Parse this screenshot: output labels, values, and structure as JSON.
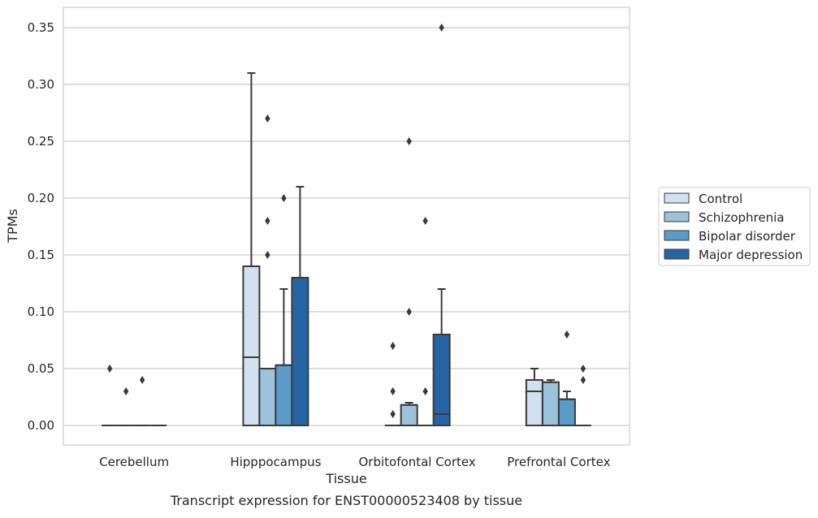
{
  "caption": "Transcript expression for ENST00000523408 by tissue",
  "chart_data": {
    "type": "box",
    "xlabel": "Tissue",
    "ylabel": "TPMs",
    "ylim": [
      -0.017,
      0.367
    ],
    "yticks": [
      "0.00",
      "0.05",
      "0.10",
      "0.15",
      "0.20",
      "0.25",
      "0.30",
      "0.35"
    ],
    "grid": true,
    "legend_position": "right",
    "categories": [
      "Cerebellum",
      "Hipppocampus",
      "Orbitofontal Cortex",
      "Prefrontal Cortex"
    ],
    "series": [
      {
        "name": "Control",
        "color": "#d1e1f0",
        "boxes": [
          {
            "q1": 0.0,
            "median": 0.0,
            "q3": 0.0,
            "whislo": 0.0,
            "whishi": 0.0,
            "fliers": [
              0.05
            ]
          },
          {
            "q1": 0.0,
            "median": 0.06,
            "q3": 0.14,
            "whislo": 0.0,
            "whishi": 0.31,
            "fliers": []
          },
          {
            "q1": 0.0,
            "median": 0.0,
            "q3": 0.0,
            "whislo": 0.0,
            "whishi": 0.0,
            "fliers": [
              0.01,
              0.03,
              0.07
            ]
          },
          {
            "q1": 0.0,
            "median": 0.03,
            "q3": 0.04,
            "whislo": 0.0,
            "whishi": 0.05,
            "fliers": []
          }
        ]
      },
      {
        "name": "Schizophrenia",
        "color": "#9cc2dc",
        "boxes": [
          {
            "q1": 0.0,
            "median": 0.0,
            "q3": 0.0,
            "whislo": 0.0,
            "whishi": 0.0,
            "fliers": [
              0.03
            ]
          },
          {
            "q1": 0.0,
            "median": 0.05,
            "q3": 0.05,
            "whislo": 0.0,
            "whishi": 0.05,
            "fliers": [
              0.15,
              0.18,
              0.27
            ]
          },
          {
            "q1": 0.0,
            "median": 0.018,
            "q3": 0.018,
            "whislo": 0.0,
            "whishi": 0.02,
            "fliers": [
              0.1,
              0.25
            ]
          },
          {
            "q1": 0.0,
            "median": 0.038,
            "q3": 0.038,
            "whislo": 0.0,
            "whishi": 0.04,
            "fliers": []
          }
        ]
      },
      {
        "name": "Bipolar disorder",
        "color": "#5a9bc8",
        "boxes": [
          {
            "q1": 0.0,
            "median": 0.0,
            "q3": 0.0,
            "whislo": 0.0,
            "whishi": 0.0,
            "fliers": [
              0.04
            ]
          },
          {
            "q1": 0.0,
            "median": 0.053,
            "q3": 0.053,
            "whislo": 0.0,
            "whishi": 0.12,
            "fliers": [
              0.2
            ]
          },
          {
            "q1": 0.0,
            "median": 0.0,
            "q3": 0.0,
            "whislo": 0.0,
            "whishi": 0.0,
            "fliers": [
              0.03,
              0.18
            ]
          },
          {
            "q1": 0.0,
            "median": 0.023,
            "q3": 0.023,
            "whislo": 0.0,
            "whishi": 0.03,
            "fliers": [
              0.08
            ]
          }
        ]
      },
      {
        "name": "Major depression",
        "color": "#2565a5",
        "boxes": [
          {
            "q1": 0.0,
            "median": 0.0,
            "q3": 0.0,
            "whislo": 0.0,
            "whishi": 0.0,
            "fliers": []
          },
          {
            "q1": 0.0,
            "median": 0.13,
            "q3": 0.13,
            "whislo": 0.0,
            "whishi": 0.21,
            "fliers": []
          },
          {
            "q1": 0.0,
            "median": 0.01,
            "q3": 0.08,
            "whislo": 0.0,
            "whishi": 0.12,
            "fliers": [
              0.35
            ]
          },
          {
            "q1": 0.0,
            "median": 0.0,
            "q3": 0.0,
            "whislo": 0.0,
            "whishi": 0.0,
            "fliers": [
              0.04,
              0.05
            ]
          }
        ]
      }
    ]
  }
}
